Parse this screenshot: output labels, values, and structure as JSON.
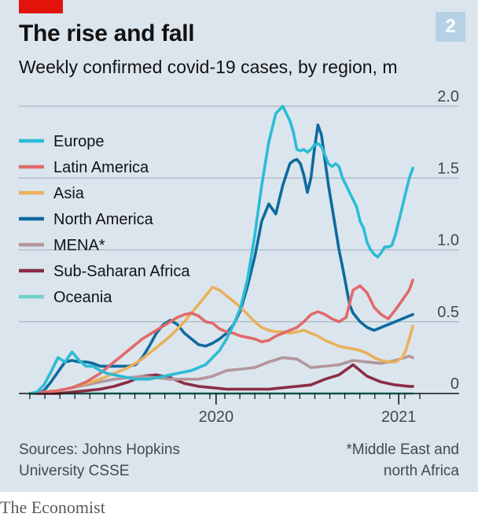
{
  "header": {
    "chart_number": "2",
    "title": "The rise and fall",
    "subtitle": "Weekly confirmed covid-19 cases, by region, m"
  },
  "footer": {
    "source_line1": "Sources: Johns Hopkins",
    "source_line2": "University CSSE",
    "footnote_line1": "*Middle East and",
    "footnote_line2": "north Africa",
    "brand": "The Economist"
  },
  "colors": {
    "background": "#dbe5ee",
    "accent": "#e3120b",
    "badge": "#b7d1e4"
  },
  "chart_data": {
    "type": "line",
    "ylim": [
      0,
      2.0
    ],
    "yticks": [
      "2.0",
      "1.5",
      "1.0",
      "0.5",
      "0"
    ],
    "ytick_values": [
      2.0,
      1.5,
      1.0,
      0.5,
      0
    ],
    "xticks": [
      "2020",
      "2021"
    ],
    "xtick_positions": [
      53,
      105
    ],
    "x_range": [
      0,
      111
    ],
    "legend_position": "top-left",
    "grid": true,
    "series": [
      {
        "name": "Europe",
        "color": "#2bbcd4",
        "x": [
          0,
          2,
          4,
          6,
          8,
          10,
          12,
          14,
          16,
          18,
          20,
          22,
          24,
          26,
          28,
          30,
          32,
          34,
          36,
          38,
          40,
          42,
          44,
          46,
          48,
          50,
          52,
          54,
          56,
          58,
          60,
          62,
          64,
          66,
          68,
          70,
          72,
          74,
          75,
          76,
          77,
          78,
          79,
          80,
          81,
          82,
          83,
          84,
          85,
          86,
          87,
          88,
          89,
          90,
          91,
          92,
          93,
          94,
          95,
          96,
          97,
          98,
          99,
          100,
          101,
          102,
          103,
          104,
          105,
          106,
          107,
          108,
          109
        ],
        "values": [
          0.0,
          0.01,
          0.06,
          0.15,
          0.25,
          0.22,
          0.29,
          0.23,
          0.19,
          0.19,
          0.16,
          0.14,
          0.13,
          0.12,
          0.11,
          0.1,
          0.1,
          0.1,
          0.11,
          0.12,
          0.13,
          0.14,
          0.15,
          0.16,
          0.18,
          0.2,
          0.25,
          0.3,
          0.38,
          0.48,
          0.6,
          0.8,
          1.1,
          1.45,
          1.75,
          1.95,
          2.0,
          1.9,
          1.82,
          1.7,
          1.69,
          1.7,
          1.68,
          1.7,
          1.73,
          1.74,
          1.72,
          1.66,
          1.6,
          1.58,
          1.6,
          1.58,
          1.5,
          1.45,
          1.4,
          1.35,
          1.3,
          1.2,
          1.15,
          1.05,
          1.0,
          0.97,
          0.95,
          0.98,
          1.02,
          1.02,
          1.03,
          1.1,
          1.2,
          1.3,
          1.4,
          1.5,
          1.57
        ]
      },
      {
        "name": "Latin America",
        "color": "#e06a6a",
        "x": [
          0,
          4,
          8,
          12,
          16,
          20,
          24,
          28,
          32,
          36,
          38,
          40,
          42,
          44,
          46,
          48,
          50,
          52,
          54,
          56,
          58,
          60,
          62,
          64,
          66,
          68,
          70,
          72,
          74,
          76,
          78,
          80,
          82,
          84,
          86,
          88,
          90,
          92,
          94,
          96,
          98,
          100,
          102,
          104,
          106,
          108,
          109
        ],
        "values": [
          0.0,
          0.01,
          0.02,
          0.04,
          0.08,
          0.14,
          0.22,
          0.3,
          0.38,
          0.44,
          0.47,
          0.5,
          0.53,
          0.55,
          0.56,
          0.54,
          0.5,
          0.49,
          0.45,
          0.43,
          0.42,
          0.4,
          0.39,
          0.38,
          0.36,
          0.37,
          0.4,
          0.42,
          0.44,
          0.46,
          0.5,
          0.55,
          0.57,
          0.55,
          0.52,
          0.5,
          0.53,
          0.72,
          0.75,
          0.7,
          0.6,
          0.55,
          0.52,
          0.58,
          0.65,
          0.72,
          0.79
        ]
      },
      {
        "name": "Asia",
        "color": "#e9b15b",
        "x": [
          0,
          4,
          8,
          12,
          16,
          20,
          24,
          28,
          32,
          34,
          36,
          38,
          40,
          42,
          44,
          46,
          48,
          50,
          52,
          54,
          56,
          58,
          60,
          62,
          64,
          66,
          68,
          70,
          72,
          74,
          76,
          78,
          80,
          82,
          84,
          86,
          88,
          90,
          92,
          94,
          96,
          98,
          100,
          102,
          104,
          106,
          107,
          108,
          109
        ],
        "values": [
          0.0,
          0.01,
          0.02,
          0.04,
          0.07,
          0.1,
          0.14,
          0.18,
          0.24,
          0.28,
          0.32,
          0.36,
          0.4,
          0.45,
          0.5,
          0.56,
          0.62,
          0.68,
          0.74,
          0.72,
          0.68,
          0.64,
          0.6,
          0.55,
          0.5,
          0.46,
          0.44,
          0.43,
          0.43,
          0.42,
          0.43,
          0.44,
          0.42,
          0.4,
          0.37,
          0.35,
          0.33,
          0.32,
          0.31,
          0.3,
          0.28,
          0.25,
          0.23,
          0.22,
          0.22,
          0.25,
          0.3,
          0.38,
          0.47
        ]
      },
      {
        "name": "North America",
        "color": "#0f6a9e",
        "x": [
          0,
          2,
          4,
          6,
          8,
          10,
          12,
          14,
          16,
          18,
          20,
          22,
          24,
          26,
          28,
          30,
          32,
          34,
          36,
          38,
          40,
          42,
          44,
          46,
          48,
          50,
          52,
          54,
          56,
          58,
          60,
          62,
          64,
          66,
          68,
          70,
          72,
          74,
          75,
          76,
          77,
          78,
          79,
          80,
          81,
          82,
          83,
          84,
          85,
          86,
          87,
          88,
          89,
          90,
          91,
          92,
          93,
          94,
          95,
          96,
          97,
          98,
          99,
          100,
          101,
          102,
          103,
          104,
          105,
          106,
          107,
          108,
          109
        ],
        "values": [
          0.0,
          0.0,
          0.02,
          0.08,
          0.15,
          0.22,
          0.23,
          0.22,
          0.22,
          0.21,
          0.19,
          0.19,
          0.19,
          0.19,
          0.19,
          0.2,
          0.25,
          0.33,
          0.42,
          0.48,
          0.51,
          0.48,
          0.42,
          0.38,
          0.34,
          0.33,
          0.35,
          0.38,
          0.42,
          0.48,
          0.58,
          0.75,
          0.95,
          1.2,
          1.32,
          1.25,
          1.45,
          1.6,
          1.62,
          1.63,
          1.6,
          1.52,
          1.4,
          1.5,
          1.7,
          1.87,
          1.8,
          1.62,
          1.45,
          1.3,
          1.15,
          1.0,
          0.88,
          0.75,
          0.62,
          0.56,
          0.53,
          0.5,
          0.48,
          0.46,
          0.45,
          0.44,
          0.45,
          0.46,
          0.47,
          0.48,
          0.49,
          0.5,
          0.51,
          0.52,
          0.53,
          0.54,
          0.55
        ]
      },
      {
        "name": "MENA*",
        "color": "#b3969c",
        "x": [
          0,
          4,
          8,
          12,
          16,
          20,
          24,
          28,
          32,
          36,
          40,
          44,
          48,
          52,
          56,
          60,
          64,
          68,
          72,
          76,
          80,
          84,
          88,
          92,
          96,
          100,
          104,
          108,
          109
        ],
        "values": [
          0.0,
          0.01,
          0.02,
          0.04,
          0.06,
          0.08,
          0.1,
          0.11,
          0.12,
          0.11,
          0.1,
          0.1,
          0.1,
          0.12,
          0.16,
          0.17,
          0.18,
          0.22,
          0.25,
          0.24,
          0.18,
          0.19,
          0.2,
          0.23,
          0.22,
          0.21,
          0.23,
          0.26,
          0.25
        ]
      },
      {
        "name": "Sub-Saharan Africa",
        "color": "#8a2e45",
        "x": [
          0,
          4,
          8,
          12,
          16,
          20,
          24,
          28,
          32,
          36,
          40,
          44,
          48,
          52,
          56,
          60,
          64,
          68,
          72,
          76,
          80,
          84,
          88,
          92,
          96,
          100,
          104,
          108,
          109
        ],
        "values": [
          0.0,
          0.0,
          0.0,
          0.01,
          0.02,
          0.03,
          0.05,
          0.08,
          0.12,
          0.13,
          0.11,
          0.07,
          0.05,
          0.04,
          0.03,
          0.03,
          0.03,
          0.03,
          0.04,
          0.05,
          0.06,
          0.1,
          0.13,
          0.2,
          0.12,
          0.08,
          0.06,
          0.05,
          0.05
        ]
      },
      {
        "name": "Oceania",
        "color": "#72d0c7",
        "x": [
          0,
          20,
          40,
          60,
          80,
          100,
          109
        ],
        "values": [
          0.0,
          0.0,
          0.0,
          0.0,
          0.0,
          0.0,
          0.0
        ]
      }
    ]
  }
}
